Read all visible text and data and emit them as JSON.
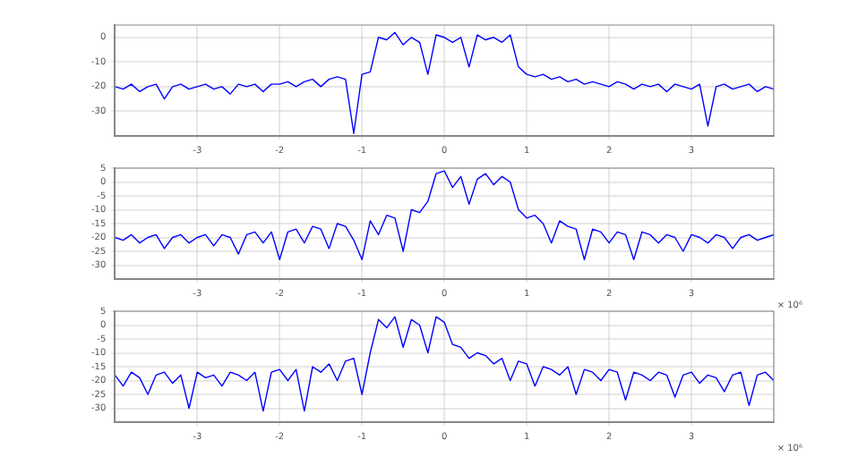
{
  "chart_data": [
    {
      "type": "line",
      "x": [
        -4.0,
        -3.9,
        -3.8,
        -3.7,
        -3.6,
        -3.5,
        -3.4,
        -3.3,
        -3.2,
        -3.1,
        -3.0,
        -2.9,
        -2.8,
        -2.7,
        -2.6,
        -2.5,
        -2.4,
        -2.3,
        -2.2,
        -2.1,
        -2.0,
        -1.9,
        -1.8,
        -1.7,
        -1.6,
        -1.5,
        -1.4,
        -1.3,
        -1.2,
        -1.1,
        -1.0,
        -0.9,
        -0.8,
        -0.7,
        -0.6,
        -0.5,
        -0.4,
        -0.3,
        -0.2,
        -0.1,
        0.0,
        0.1,
        0.2,
        0.3,
        0.4,
        0.5,
        0.6,
        0.7,
        0.8,
        0.9,
        1.0,
        1.1,
        1.2,
        1.3,
        1.4,
        1.5,
        1.6,
        1.7,
        1.8,
        1.9,
        2.0,
        2.1,
        2.2,
        2.3,
        2.4,
        2.5,
        2.6,
        2.7,
        2.8,
        2.9,
        3.0,
        3.1,
        3.2,
        3.3,
        3.4,
        3.5,
        3.6,
        3.7,
        3.8,
        3.9,
        4.0
      ],
      "series": [
        {
          "color": "#0000ff",
          "values": [
            -20,
            -21,
            -19,
            -22,
            -20,
            -19,
            -25,
            -20,
            -19,
            -21,
            -20,
            -19,
            -21,
            -20,
            -23,
            -19,
            -20,
            -19,
            -22,
            -19,
            -19,
            -18,
            -20,
            -18,
            -17,
            -20,
            -17,
            -16,
            -17,
            -39,
            -15,
            -14,
            0,
            -1,
            2,
            -3,
            0,
            -2,
            -15,
            1,
            0,
            -2,
            0,
            -12,
            1,
            -1,
            0,
            -2,
            1,
            -12,
            -15,
            -16,
            -15,
            -17,
            -16,
            -18,
            -17,
            -19,
            -18,
            -19,
            -20,
            -18,
            -19,
            -21,
            -19,
            -20,
            -19,
            -22,
            -19,
            -20,
            -21,
            -19,
            -36,
            -20,
            -19,
            -21,
            -20,
            -19,
            -22,
            -20,
            -21
          ]
        }
      ],
      "xlim": [
        -4,
        4
      ],
      "xticks": [
        -3,
        -2,
        -1,
        0,
        1,
        2,
        3
      ],
      "ylim": [
        -40,
        5
      ],
      "yticks": [
        0,
        -10,
        -20,
        -30
      ],
      "grid": true
    },
    {
      "type": "line",
      "x": [
        -4.0,
        -3.9,
        -3.8,
        -3.7,
        -3.6,
        -3.5,
        -3.4,
        -3.3,
        -3.2,
        -3.1,
        -3.0,
        -2.9,
        -2.8,
        -2.7,
        -2.6,
        -2.5,
        -2.4,
        -2.3,
        -2.2,
        -2.1,
        -2.0,
        -1.9,
        -1.8,
        -1.7,
        -1.6,
        -1.5,
        -1.4,
        -1.3,
        -1.2,
        -1.1,
        -1.0,
        -0.9,
        -0.8,
        -0.7,
        -0.6,
        -0.5,
        -0.4,
        -0.3,
        -0.2,
        -0.1,
        0.0,
        0.1,
        0.2,
        0.3,
        0.4,
        0.5,
        0.6,
        0.7,
        0.8,
        0.9,
        1.0,
        1.1,
        1.2,
        1.3,
        1.4,
        1.5,
        1.6,
        1.7,
        1.8,
        1.9,
        2.0,
        2.1,
        2.2,
        2.3,
        2.4,
        2.5,
        2.6,
        2.7,
        2.8,
        2.9,
        3.0,
        3.1,
        3.2,
        3.3,
        3.4,
        3.5,
        3.6,
        3.7,
        3.8,
        3.9,
        4.0
      ],
      "series": [
        {
          "color": "#0000ff",
          "values": [
            -20,
            -21,
            -19,
            -22,
            -20,
            -19,
            -24,
            -20,
            -19,
            -22,
            -20,
            -19,
            -23,
            -19,
            -20,
            -26,
            -19,
            -18,
            -22,
            -18,
            -28,
            -18,
            -17,
            -22,
            -16,
            -17,
            -24,
            -15,
            -16,
            -21,
            -28,
            -14,
            -19,
            -12,
            -13,
            -25,
            -10,
            -11,
            -7,
            3,
            4,
            -2,
            2,
            -8,
            1,
            3,
            -1,
            2,
            0,
            -10,
            -13,
            -12,
            -15,
            -22,
            -14,
            -16,
            -17,
            -28,
            -17,
            -18,
            -22,
            -18,
            -19,
            -28,
            -18,
            -19,
            -22,
            -19,
            -20,
            -25,
            -19,
            -20,
            -22,
            -19,
            -20,
            -24,
            -20,
            -19,
            -21,
            -20,
            -19
          ]
        }
      ],
      "xlim": [
        -4,
        4
      ],
      "xticks": [
        -3,
        -2,
        -1,
        0,
        1,
        2,
        3
      ],
      "ylim": [
        -35,
        5
      ],
      "yticks": [
        5,
        0,
        -5,
        -10,
        -15,
        -20,
        -25,
        -30
      ],
      "grid": true,
      "annotations": [
        "× 10⁶"
      ]
    },
    {
      "type": "line",
      "x": [
        -4.0,
        -3.9,
        -3.8,
        -3.7,
        -3.6,
        -3.5,
        -3.4,
        -3.3,
        -3.2,
        -3.1,
        -3.0,
        -2.9,
        -2.8,
        -2.7,
        -2.6,
        -2.5,
        -2.4,
        -2.3,
        -2.2,
        -2.1,
        -2.0,
        -1.9,
        -1.8,
        -1.7,
        -1.6,
        -1.5,
        -1.4,
        -1.3,
        -1.2,
        -1.1,
        -1.0,
        -0.9,
        -0.8,
        -0.7,
        -0.6,
        -0.5,
        -0.4,
        -0.3,
        -0.2,
        -0.1,
        0.0,
        0.1,
        0.2,
        0.3,
        0.4,
        0.5,
        0.6,
        0.7,
        0.8,
        0.9,
        1.0,
        1.1,
        1.2,
        1.3,
        1.4,
        1.5,
        1.6,
        1.7,
        1.8,
        1.9,
        2.0,
        2.1,
        2.2,
        2.3,
        2.4,
        2.5,
        2.6,
        2.7,
        2.8,
        2.9,
        3.0,
        3.1,
        3.2,
        3.3,
        3.4,
        3.5,
        3.6,
        3.7,
        3.8,
        3.9,
        4.0
      ],
      "series": [
        {
          "color": "#0000ff",
          "values": [
            -18,
            -22,
            -17,
            -19,
            -25,
            -18,
            -17,
            -21,
            -18,
            -30,
            -17,
            -19,
            -18,
            -22,
            -17,
            -18,
            -20,
            -17,
            -31,
            -17,
            -16,
            -20,
            -16,
            -31,
            -15,
            -17,
            -14,
            -20,
            -13,
            -12,
            -25,
            -10,
            2,
            -1,
            3,
            -8,
            2,
            0,
            -10,
            3,
            1,
            -7,
            -8,
            -12,
            -10,
            -11,
            -14,
            -12,
            -20,
            -13,
            -14,
            -22,
            -15,
            -16,
            -18,
            -15,
            -25,
            -16,
            -17,
            -20,
            -16,
            -17,
            -27,
            -17,
            -18,
            -20,
            -17,
            -18,
            -26,
            -18,
            -17,
            -21,
            -18,
            -19,
            -24,
            -18,
            -17,
            -29,
            -18,
            -17,
            -20
          ]
        }
      ],
      "xlim": [
        -4,
        4
      ],
      "xticks": [
        -3,
        -2,
        -1,
        0,
        1,
        2,
        3
      ],
      "ylim": [
        -35,
        5
      ],
      "yticks": [
        5,
        0,
        -5,
        -10,
        -15,
        -20,
        -25,
        -30
      ],
      "grid": true,
      "annotations": [
        "× 10⁶"
      ]
    }
  ]
}
